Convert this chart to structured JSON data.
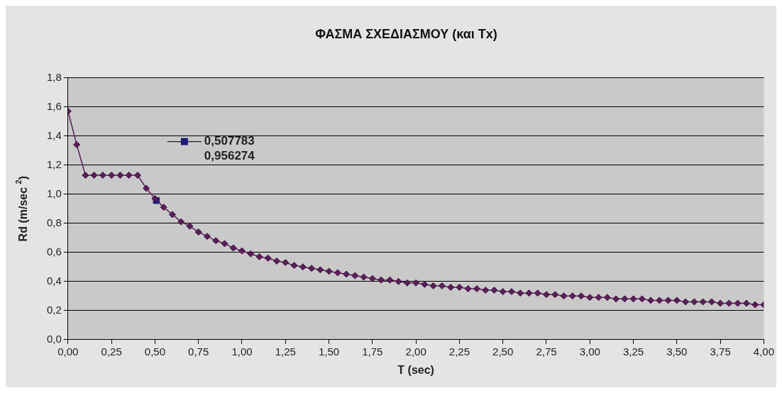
{
  "chart_data": {
    "type": "line",
    "title": "ΦΑΣΜΑ ΣΧΕΔΙΑΣΜΟΥ (και Tx)",
    "xlabel": "T (sec)",
    "ylabel": "Rd (m/sec $^{2}$)",
    "xlim": [
      0,
      4
    ],
    "xticks": [
      {
        "value": 0,
        "label": "0,00"
      },
      {
        "value": 0.25,
        "label": "0,25"
      },
      {
        "value": 0.5,
        "label": "0,50"
      },
      {
        "value": 0.75,
        "label": "0,75"
      },
      {
        "value": 1,
        "label": "1,00"
      },
      {
        "value": 1.25,
        "label": "1,25"
      },
      {
        "value": 1.5,
        "label": "1,50"
      },
      {
        "value": 1.75,
        "label": "1,75"
      },
      {
        "value": 2,
        "label": "2,00"
      },
      {
        "value": 2.25,
        "label": "2,25"
      },
      {
        "value": 2.5,
        "label": "2,50"
      },
      {
        "value": 2.75,
        "label": "2,75"
      },
      {
        "value": 3,
        "label": "3,00"
      },
      {
        "value": 3.25,
        "label": "3,25"
      },
      {
        "value": 3.5,
        "label": "3,50"
      },
      {
        "value": 3.75,
        "label": "3,75"
      },
      {
        "value": 4,
        "label": "4,00"
      }
    ],
    "ylim": [
      0,
      1.8
    ],
    "yticks": [
      {
        "value": 0,
        "label": "0,0"
      },
      {
        "value": 0.2,
        "label": "0,2"
      },
      {
        "value": 0.4,
        "label": "0,4"
      },
      {
        "value": 0.6,
        "label": "0,6"
      },
      {
        "value": 0.8,
        "label": "0,8"
      },
      {
        "value": 1,
        "label": "1,0"
      },
      {
        "value": 1.2,
        "label": "1,2"
      },
      {
        "value": 1.4,
        "label": "1,4"
      },
      {
        "value": 1.6,
        "label": "1,6"
      },
      {
        "value": 1.8,
        "label": "1,8"
      }
    ],
    "grid": "y",
    "legend": "top left",
    "marker": "diamond",
    "line_style": "solid",
    "annotations": [
      "0,956274"
    ],
    "series": [
      {
        "color": "#5b1f5a",
        "x": [
          0,
          0.05,
          0.1,
          0.15,
          0.2,
          0.25,
          0.3,
          0.35,
          0.4,
          0.45,
          0.5,
          0.55,
          0.6,
          0.65,
          0.7,
          0.75,
          0.8,
          0.85,
          0.9,
          0.95,
          1,
          1.05,
          1.1,
          1.15,
          1.2,
          1.25,
          1.3,
          1.35,
          1.4,
          1.45,
          1.5,
          1.55,
          1.6,
          1.65,
          1.7,
          1.75,
          1.8,
          1.85,
          1.9,
          1.95,
          2,
          2.05,
          2.1,
          2.15,
          2.2,
          2.25,
          2.3,
          2.35,
          2.4,
          2.45,
          2.5,
          2.55,
          2.6,
          2.65,
          2.7,
          2.75,
          2.8,
          2.85,
          2.9,
          2.95,
          3,
          3.05,
          3.1,
          3.15,
          3.2,
          3.25,
          3.3,
          3.35,
          3.4,
          3.45,
          3.5,
          3.55,
          3.6,
          3.65,
          3.7,
          3.75,
          3.8,
          3.85,
          3.9,
          3.95,
          4
        ],
        "values": [
          1.57,
          1.34,
          1.13,
          1.13,
          1.13,
          1.13,
          1.13,
          1.13,
          1.13,
          1.04,
          0.97,
          0.91,
          0.86,
          0.81,
          0.78,
          0.74,
          0.71,
          0.68,
          0.66,
          0.63,
          0.61,
          0.59,
          0.57,
          0.56,
          0.54,
          0.53,
          0.51,
          0.5,
          0.49,
          0.48,
          0.47,
          0.46,
          0.45,
          0.44,
          0.43,
          0.42,
          0.41,
          0.41,
          0.4,
          0.39,
          0.39,
          0.38,
          0.37,
          0.37,
          0.36,
          0.36,
          0.35,
          0.35,
          0.34,
          0.34,
          0.33,
          0.33,
          0.32,
          0.32,
          0.32,
          0.31,
          0.31,
          0.3,
          0.3,
          0.3,
          0.29,
          0.29,
          0.29,
          0.28,
          0.28,
          0.28,
          0.28,
          0.27,
          0.27,
          0.27,
          0.27,
          0.26,
          0.26,
          0.26,
          0.26,
          0.25,
          0.25,
          0.25,
          0.25,
          0.24,
          0.24
        ]
      },
      {
        "type": "scatter",
        "name": "0,507783",
        "color": "#1c1c7e",
        "marker": "square",
        "x": [
          0.507783
        ],
        "values": [
          0.956274
        ]
      }
    ]
  }
}
